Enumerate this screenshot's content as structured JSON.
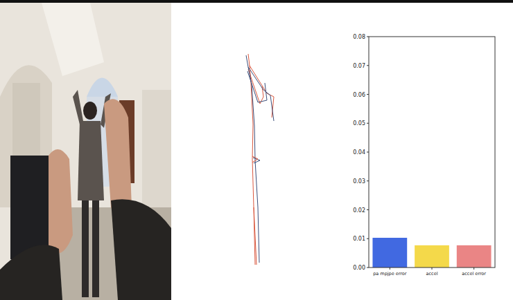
{
  "chart_data": {
    "type": "bar",
    "categories": [
      "pa mpjpe error",
      "accel",
      "accel error"
    ],
    "values": [
      0.0103,
      0.0077,
      0.0077
    ],
    "colors": [
      "#4169e1",
      "#f4d94a",
      "#ea8585"
    ],
    "ylim": [
      0,
      0.08
    ],
    "yticks": [
      {
        "value": 0,
        "label": "0.00"
      },
      0.01,
      0.02,
      0.03,
      0.04,
      0.05,
      0.06,
      0.07,
      0.08
    ],
    "grid": false
  }
}
